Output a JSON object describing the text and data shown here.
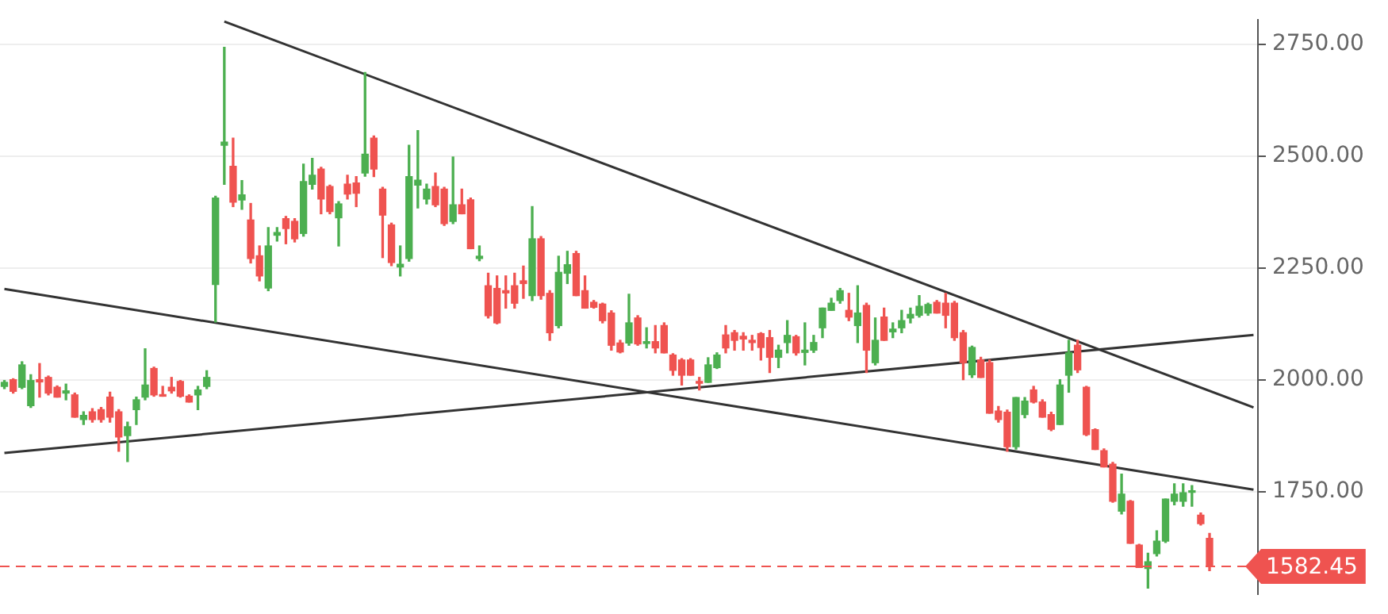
{
  "chart_data": {
    "type": "candlestick",
    "categories": [
      null,
      null,
      null,
      null,
      null,
      null,
      null,
      null,
      null,
      null,
      null,
      null,
      null,
      null,
      null,
      null,
      null,
      null,
      null,
      null,
      null,
      null,
      null,
      null,
      null,
      null,
      null,
      null,
      null,
      null,
      null,
      null,
      null,
      null,
      null,
      null,
      null,
      null,
      null,
      null,
      null,
      null,
      null,
      null,
      null,
      null,
      null,
      null,
      null,
      null,
      null,
      null,
      null,
      null,
      null,
      null,
      null,
      null,
      null,
      null,
      null,
      null,
      null,
      null,
      null,
      null,
      null,
      null,
      null,
      null,
      null,
      null,
      null,
      null,
      null,
      null,
      null,
      null,
      null,
      null,
      null,
      null,
      null,
      null,
      null,
      null,
      null,
      null,
      null,
      null,
      null,
      null,
      null,
      null,
      null,
      null,
      null,
      null,
      null,
      null,
      null,
      null,
      null,
      null,
      null,
      null,
      null,
      null,
      null,
      null,
      null,
      null,
      null,
      null,
      null,
      null,
      null,
      null,
      null,
      null,
      null,
      null,
      null,
      null,
      null,
      null,
      null,
      null,
      null,
      null,
      null,
      null,
      null,
      null,
      null,
      null,
      null,
      null,
      null,
      null,
      null,
      null,
      null
    ],
    "ohlc": [
      [
        1985,
        1998,
        1980,
        1994
      ],
      [
        2000,
        2002,
        1970,
        1974
      ],
      [
        1983,
        2040,
        1980,
        2033
      ],
      [
        1942,
        2011,
        1938,
        1998
      ],
      [
        2000,
        2036,
        1961,
        1995
      ],
      [
        2005,
        2008,
        1966,
        1970
      ],
      [
        1983,
        1986,
        1961,
        1961
      ],
      [
        1970,
        1990,
        1955,
        1975
      ],
      [
        1966,
        1970,
        1916,
        1916
      ],
      [
        1911,
        1928,
        1900,
        1920
      ],
      [
        1928,
        1935,
        1905,
        1911
      ],
      [
        1933,
        1938,
        1905,
        1911
      ],
      [
        1961,
        1972,
        1905,
        1916
      ],
      [
        1928,
        1933,
        1840,
        1872
      ],
      [
        1875,
        1905,
        1817,
        1895
      ],
      [
        1933,
        1961,
        1900,
        1955
      ],
      [
        1961,
        2069,
        1955,
        1988
      ],
      [
        2025,
        2028,
        1963,
        1966
      ],
      [
        1966,
        1985,
        1963,
        1963
      ],
      [
        1983,
        2005,
        1970,
        1975
      ],
      [
        1996,
        1998,
        1961,
        1963
      ],
      [
        1963,
        1966,
        1950,
        1950
      ],
      [
        1966,
        1985,
        1933,
        1977
      ],
      [
        1985,
        2020,
        1980,
        2005
      ],
      [
        2213,
        2410,
        2129,
        2406
      ],
      [
        2524,
        2743,
        2437,
        2531
      ],
      [
        2477,
        2540,
        2387,
        2397
      ],
      [
        2402,
        2445,
        2381,
        2413
      ],
      [
        2357,
        2394,
        2261,
        2271
      ],
      [
        2277,
        2299,
        2221,
        2232
      ],
      [
        2205,
        2340,
        2199,
        2299
      ],
      [
        2323,
        2340,
        2310,
        2329
      ],
      [
        2360,
        2365,
        2304,
        2338
      ],
      [
        2354,
        2360,
        2308,
        2315
      ],
      [
        2327,
        2482,
        2321,
        2443
      ],
      [
        2437,
        2495,
        2426,
        2457
      ],
      [
        2471,
        2475,
        2371,
        2404
      ],
      [
        2432,
        2435,
        2371,
        2376
      ],
      [
        2362,
        2398,
        2299,
        2393
      ],
      [
        2437,
        2457,
        2404,
        2415
      ],
      [
        2440,
        2454,
        2387,
        2417
      ],
      [
        2462,
        2687,
        2455,
        2504
      ],
      [
        2540,
        2545,
        2454,
        2471
      ],
      [
        2426,
        2430,
        2273,
        2368
      ],
      [
        2346,
        2350,
        2255,
        2262
      ],
      [
        2252,
        2299,
        2232,
        2258
      ],
      [
        2271,
        2524,
        2265,
        2454
      ],
      [
        2435,
        2557,
        2384,
        2446
      ],
      [
        2404,
        2437,
        2393,
        2426
      ],
      [
        2432,
        2462,
        2387,
        2391
      ],
      [
        2426,
        2430,
        2345,
        2349
      ],
      [
        2354,
        2498,
        2349,
        2391
      ],
      [
        2391,
        2426,
        2371,
        2371
      ],
      [
        2402,
        2406,
        2293,
        2293
      ],
      [
        2271,
        2299,
        2266,
        2276
      ],
      [
        2210,
        2238,
        2138,
        2143
      ],
      [
        2204,
        2232,
        2125,
        2127
      ],
      [
        2199,
        2232,
        2160,
        2194
      ],
      [
        2210,
        2238,
        2160,
        2171
      ],
      [
        2221,
        2254,
        2182,
        2215
      ],
      [
        2188,
        2387,
        2177,
        2315
      ],
      [
        2315,
        2320,
        2180,
        2188
      ],
      [
        2193,
        2199,
        2088,
        2105
      ],
      [
        2121,
        2276,
        2116,
        2240
      ],
      [
        2238,
        2287,
        2215,
        2257
      ],
      [
        2282,
        2287,
        2188,
        2188
      ],
      [
        2199,
        2232,
        2160,
        2160
      ],
      [
        2173,
        2177,
        2160,
        2162
      ],
      [
        2169,
        2171,
        2127,
        2132
      ],
      [
        2149,
        2154,
        2066,
        2077
      ],
      [
        2082,
        2088,
        2060,
        2062
      ],
      [
        2082,
        2191,
        2077,
        2127
      ],
      [
        2138,
        2143,
        2077,
        2080
      ],
      [
        2081,
        2116,
        2071,
        2085
      ],
      [
        2085,
        2121,
        2060,
        2071
      ],
      [
        2121,
        2127,
        2060,
        2060
      ],
      [
        2055,
        2058,
        2010,
        2021
      ],
      [
        2044,
        2047,
        1988,
        2010
      ],
      [
        2044,
        2047,
        2010,
        2010
      ],
      [
        1996,
        2005,
        1977,
        1992
      ],
      [
        1994,
        2049,
        1994,
        2033
      ],
      [
        2027,
        2060,
        2025,
        2055
      ],
      [
        2100,
        2121,
        2060,
        2071
      ],
      [
        2105,
        2110,
        2066,
        2088
      ],
      [
        2097,
        2105,
        2066,
        2091
      ],
      [
        2088,
        2099,
        2066,
        2083
      ],
      [
        2103,
        2105,
        2044,
        2072
      ],
      [
        2094,
        2110,
        2016,
        2050
      ],
      [
        2050,
        2077,
        2027,
        2066
      ],
      [
        2083,
        2132,
        2060,
        2099
      ],
      [
        2096,
        2099,
        2055,
        2060
      ],
      [
        2061,
        2127,
        2033,
        2066
      ],
      [
        2066,
        2099,
        2061,
        2083
      ],
      [
        2116,
        2160,
        2094,
        2160
      ],
      [
        2155,
        2182,
        2155,
        2171
      ],
      [
        2177,
        2204,
        2171,
        2199
      ],
      [
        2155,
        2193,
        2132,
        2140
      ],
      [
        2121,
        2210,
        2083,
        2149
      ],
      [
        2166,
        2171,
        2016,
        2066
      ],
      [
        2038,
        2138,
        2033,
        2088
      ],
      [
        2140,
        2160,
        2088,
        2088
      ],
      [
        2107,
        2127,
        2094,
        2113
      ],
      [
        2116,
        2155,
        2105,
        2132
      ],
      [
        2138,
        2160,
        2127,
        2146
      ],
      [
        2144,
        2188,
        2140,
        2164
      ],
      [
        2149,
        2171,
        2144,
        2168
      ],
      [
        2173,
        2177,
        2149,
        2149
      ],
      [
        2171,
        2193,
        2116,
        2144
      ],
      [
        2171,
        2175,
        2088,
        2094
      ],
      [
        2105,
        2110,
        2000,
        2038
      ],
      [
        2011,
        2075,
        2005,
        2072
      ],
      [
        2044,
        2050,
        2005,
        2005
      ],
      [
        2038,
        2044,
        1925,
        1925
      ],
      [
        1930,
        1940,
        1905,
        1911
      ],
      [
        1927,
        1932,
        1840,
        1850
      ],
      [
        1850,
        1960,
        1845,
        1960
      ],
      [
        1922,
        1960,
        1915,
        1952
      ],
      [
        1977,
        1985,
        1948,
        1950
      ],
      [
        1950,
        1955,
        1916,
        1916
      ],
      [
        1922,
        1927,
        1886,
        1889
      ],
      [
        1900,
        2000,
        1900,
        1988
      ],
      [
        2010,
        2088,
        1972,
        2060
      ],
      [
        2077,
        2088,
        2016,
        2022
      ],
      [
        1983,
        1985,
        1875,
        1877
      ],
      [
        1888,
        1890,
        1844,
        1844
      ],
      [
        1841,
        1845,
        1805,
        1805
      ],
      [
        1811,
        1815,
        1726,
        1728
      ],
      [
        1706,
        1789,
        1700,
        1744
      ],
      [
        1728,
        1730,
        1634,
        1634
      ],
      [
        1630,
        1632,
        1580,
        1580
      ],
      [
        1578,
        1612,
        1534,
        1593
      ],
      [
        1611,
        1662,
        1606,
        1639
      ],
      [
        1639,
        1733,
        1636,
        1733
      ],
      [
        1728,
        1767,
        1720,
        1744
      ],
      [
        1728,
        1767,
        1717,
        1747
      ],
      [
        1748,
        1763,
        1717,
        1750
      ],
      [
        1697,
        1702,
        1675,
        1678
      ],
      [
        1645,
        1656,
        1573,
        1582.45
      ],
      null,
      null,
      null,
      null,
      null
    ],
    "colors": [
      "#4caf50",
      "#ef5350",
      "#4caf50",
      "#4caf50",
      "#ef5350",
      "#ef5350",
      "#ef5350",
      "#4caf50",
      "#ef5350",
      "#4caf50",
      "#ef5350",
      "#ef5350",
      "#ef5350",
      "#ef5350",
      "#4caf50",
      "#4caf50",
      "#4caf50",
      "#ef5350",
      "#ef5350",
      "#ef5350",
      "#ef5350",
      "#ef5350",
      "#4caf50",
      "#4caf50",
      "#4caf50",
      "#4caf50",
      "#ef5350",
      "#4caf50",
      "#ef5350",
      "#ef5350",
      "#4caf50",
      "#4caf50",
      "#ef5350",
      "#ef5350",
      "#4caf50",
      "#4caf50",
      "#ef5350",
      "#ef5350",
      "#4caf50",
      "#ef5350",
      "#ef5350",
      "#4caf50",
      "#ef5350",
      "#ef5350",
      "#ef5350",
      "#4caf50",
      "#4caf50",
      "#4caf50",
      "#4caf50",
      "#ef5350",
      "#ef5350",
      "#4caf50",
      "#ef5350",
      "#ef5350",
      "#4caf50",
      "#ef5350",
      "#ef5350",
      "#ef5350",
      "#ef5350",
      "#ef5350",
      "#4caf50",
      "#ef5350",
      "#ef5350",
      "#4caf50",
      "#4caf50",
      "#ef5350",
      "#ef5350",
      "#ef5350",
      "#ef5350",
      "#ef5350",
      "#ef5350",
      "#4caf50",
      "#ef5350",
      "#4caf50",
      "#ef5350",
      "#ef5350",
      "#ef5350",
      "#ef5350",
      "#ef5350",
      "#ef5350",
      "#4caf50",
      "#4caf50",
      "#ef5350",
      "#ef5350",
      "#ef5350",
      "#ef5350",
      "#ef5350",
      "#ef5350",
      "#4caf50",
      "#4caf50",
      "#ef5350",
      "#4caf50",
      "#4caf50",
      "#4caf50",
      "#4caf50",
      "#4caf50",
      "#ef5350",
      "#4caf50",
      "#ef5350",
      "#4caf50",
      "#ef5350",
      "#4caf50",
      "#4caf50",
      "#4caf50",
      "#4caf50",
      "#4caf50",
      "#ef5350",
      "#ef5350",
      "#ef5350",
      "#ef5350",
      "#4caf50",
      "#ef5350",
      "#ef5350",
      "#ef5350",
      "#ef5350",
      "#4caf50",
      "#4caf50",
      "#ef5350",
      "#ef5350",
      "#ef5350",
      "#4caf50",
      "#4caf50",
      "#ef5350",
      "#ef5350",
      "#ef5350",
      "#ef5350",
      "#ef5350",
      "#4caf50",
      "#ef5350",
      "#ef5350",
      "#4caf50",
      "#4caf50",
      "#4caf50",
      "#4caf50",
      "#4caf50",
      "#4caf50",
      "#ef5350",
      "#ef5350",
      null,
      null,
      null,
      null,
      null
    ],
    "series": [
      {
        "type": "line",
        "color": "#333333",
        "values": [
          null,
          null,
          null,
          null,
          null,
          null,
          null,
          null,
          null,
          null,
          null,
          null,
          null,
          null,
          null,
          null,
          null,
          null,
          null,
          null,
          null,
          null,
          null,
          null,
          null,
          2801,
          null,
          null,
          null,
          null,
          null,
          null,
          null,
          null,
          null,
          null,
          null,
          null,
          null,
          null,
          null,
          null,
          null,
          null,
          null,
          null,
          null,
          null,
          null,
          null,
          null,
          null,
          null,
          null,
          null,
          null,
          null,
          null,
          null,
          null,
          null,
          null,
          null,
          null,
          null,
          null,
          null,
          null,
          null,
          null,
          null,
          null,
          null,
          null,
          null,
          null,
          null,
          null,
          null,
          null,
          null,
          null,
          null,
          null,
          null,
          null,
          null,
          null,
          null,
          null,
          null,
          null,
          null,
          null,
          null,
          null,
          null,
          null,
          null,
          null,
          null,
          null,
          null,
          null,
          null,
          null,
          null,
          null,
          null,
          null,
          null,
          null,
          null,
          null,
          null,
          null,
          null,
          null,
          null,
          null,
          null,
          null,
          null,
          null,
          null,
          null,
          null,
          null,
          null,
          null,
          null,
          null,
          null,
          null,
          null,
          null,
          null,
          null,
          null,
          null,
          null,
          null,
          1938
        ]
      },
      {
        "type": "line",
        "color": "#333333",
        "values": [
          2203,
          null,
          null,
          null,
          null,
          null,
          null,
          null,
          null,
          null,
          null,
          null,
          null,
          null,
          null,
          null,
          null,
          null,
          null,
          null,
          null,
          null,
          null,
          null,
          null,
          null,
          null,
          null,
          null,
          null,
          null,
          null,
          null,
          null,
          null,
          null,
          null,
          null,
          null,
          null,
          null,
          null,
          null,
          null,
          null,
          null,
          null,
          null,
          null,
          null,
          null,
          null,
          null,
          null,
          null,
          null,
          null,
          null,
          null,
          null,
          null,
          null,
          null,
          null,
          null,
          null,
          null,
          null,
          null,
          null,
          null,
          null,
          null,
          null,
          null,
          null,
          null,
          null,
          null,
          null,
          null,
          null,
          null,
          null,
          null,
          null,
          null,
          null,
          null,
          null,
          null,
          null,
          null,
          null,
          null,
          null,
          null,
          null,
          null,
          null,
          null,
          null,
          null,
          null,
          null,
          null,
          null,
          null,
          null,
          null,
          null,
          null,
          null,
          null,
          null,
          null,
          null,
          null,
          null,
          null,
          null,
          null,
          null,
          null,
          null,
          null,
          null,
          null,
          null,
          null,
          null,
          null,
          null,
          null,
          null,
          null,
          null,
          null,
          null,
          null,
          null,
          null,
          1754
        ]
      },
      {
        "type": "line",
        "color": "#333333",
        "values": [
          1836,
          null,
          null,
          null,
          null,
          null,
          null,
          null,
          null,
          null,
          null,
          null,
          null,
          null,
          null,
          null,
          null,
          null,
          null,
          null,
          null,
          null,
          null,
          null,
          null,
          null,
          null,
          null,
          null,
          null,
          null,
          null,
          null,
          null,
          null,
          null,
          null,
          null,
          null,
          null,
          null,
          null,
          null,
          null,
          null,
          null,
          null,
          null,
          null,
          null,
          null,
          null,
          null,
          null,
          null,
          null,
          null,
          null,
          null,
          null,
          null,
          null,
          null,
          null,
          null,
          null,
          null,
          null,
          null,
          null,
          null,
          null,
          null,
          null,
          null,
          null,
          null,
          null,
          null,
          null,
          null,
          null,
          null,
          null,
          null,
          null,
          null,
          null,
          null,
          null,
          null,
          null,
          null,
          null,
          null,
          null,
          null,
          null,
          null,
          null,
          null,
          null,
          null,
          null,
          null,
          null,
          null,
          null,
          null,
          null,
          null,
          null,
          null,
          null,
          null,
          null,
          null,
          null,
          null,
          null,
          null,
          null,
          null,
          null,
          null,
          null,
          null,
          null,
          null,
          null,
          null,
          null,
          null,
          null,
          null,
          null,
          null,
          null,
          null,
          null,
          null,
          null,
          2100
        ]
      }
    ],
    "ylim": [
      1520,
      2805
    ],
    "yticks": [
      {
        "value": 1750,
        "label": "1750.00"
      },
      {
        "value": 2000,
        "label": "2000.00"
      },
      {
        "value": 2250,
        "label": "2250.00"
      },
      {
        "value": 2500,
        "label": "2500.00"
      },
      {
        "value": 2750,
        "label": "2750.00"
      }
    ],
    "tick_labels": "y",
    "grid": "y",
    "legend": false,
    "ref_lines": [
      {
        "axis": "y",
        "value": 1582.45,
        "label": "1582.45",
        "color": "#ef5350",
        "line_style": "dashed"
      }
    ]
  }
}
